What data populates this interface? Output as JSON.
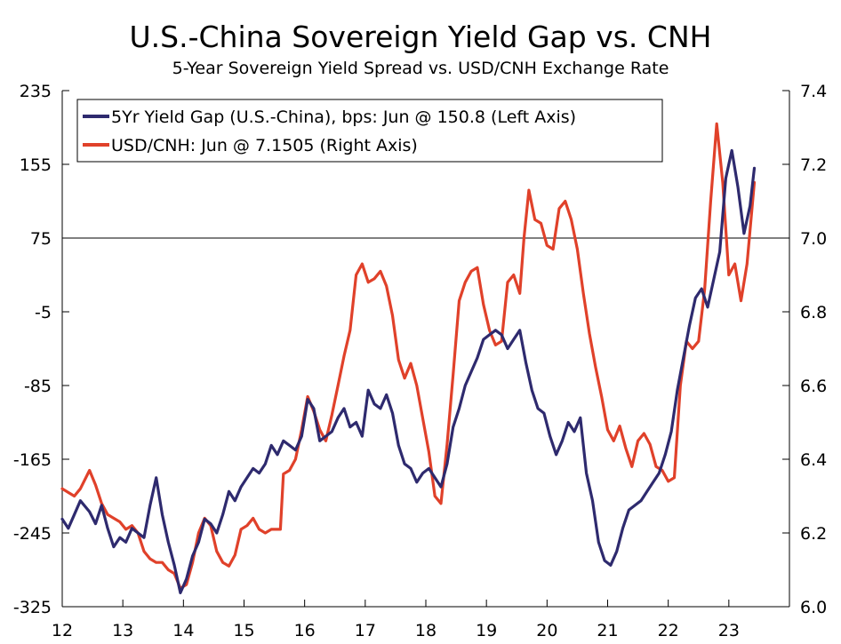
{
  "chart_data": {
    "type": "line",
    "title": "U.S.-China Sovereign Yield Gap vs. CNH",
    "subtitle": "5-Year Sovereign Yield Spread vs. USD/CNH Exchange Rate",
    "x_range": [
      2012.0,
      2024.0
    ],
    "x_ticks": [
      {
        "value": 2012,
        "label": "12"
      },
      {
        "value": 2013,
        "label": "13"
      },
      {
        "value": 2014,
        "label": "14"
      },
      {
        "value": 2015,
        "label": "15"
      },
      {
        "value": 2016,
        "label": "16"
      },
      {
        "value": 2017,
        "label": "17"
      },
      {
        "value": 2018,
        "label": "18"
      },
      {
        "value": 2019,
        "label": "19"
      },
      {
        "value": 2020,
        "label": "20"
      },
      {
        "value": 2021,
        "label": "21"
      },
      {
        "value": 2022,
        "label": "22"
      },
      {
        "value": 2023,
        "label": "23"
      }
    ],
    "left_axis": {
      "range": [
        -325,
        235
      ],
      "ticks": [
        235,
        155,
        75,
        -5,
        -85,
        -165,
        -245,
        -325
      ],
      "tick_labels": [
        "235",
        "155",
        "75",
        "-5",
        "-85",
        "-165",
        "-245",
        "-325"
      ]
    },
    "right_axis": {
      "range": [
        6.0,
        7.4
      ],
      "ticks": [
        7.4,
        7.2,
        7.0,
        6.8,
        6.6,
        6.4,
        6.2,
        6.0
      ],
      "tick_labels": [
        "7.4",
        "7.2",
        "7.0",
        "6.8",
        "6.6",
        "6.4",
        "6.2",
        "6.0"
      ]
    },
    "reference_line": {
      "axis": "left",
      "value": 75
    },
    "legend": [
      {
        "label": "5Yr Yield Gap (U.S.-China), bps: Jun @ 150.8 (Left Axis)",
        "color": "#2e2a6e"
      },
      {
        "label": "USD/CNH: Jun @ 7.1505 (Right Axis)",
        "color": "#e0412a"
      }
    ],
    "series": [
      {
        "name": "5Yr Yield Gap (U.S.-China), bps",
        "axis": "left",
        "color": "#2e2a6e",
        "x": [
          2012.0,
          2012.1,
          2012.2,
          2012.3,
          2012.45,
          2012.55,
          2012.65,
          2012.75,
          2012.85,
          2012.95,
          2013.05,
          2013.15,
          2013.25,
          2013.35,
          2013.45,
          2013.55,
          2013.65,
          2013.75,
          2013.85,
          2013.95,
          2014.05,
          2014.15,
          2014.25,
          2014.35,
          2014.45,
          2014.55,
          2014.65,
          2014.75,
          2014.85,
          2014.95,
          2015.05,
          2015.15,
          2015.25,
          2015.35,
          2015.45,
          2015.55,
          2015.65,
          2015.75,
          2015.85,
          2015.95,
          2016.05,
          2016.15,
          2016.25,
          2016.35,
          2016.45,
          2016.55,
          2016.65,
          2016.75,
          2016.85,
          2016.95,
          2017.05,
          2017.15,
          2017.25,
          2017.35,
          2017.45,
          2017.55,
          2017.65,
          2017.75,
          2017.85,
          2017.95,
          2018.05,
          2018.15,
          2018.25,
          2018.35,
          2018.45,
          2018.55,
          2018.65,
          2018.75,
          2018.85,
          2018.95,
          2019.05,
          2019.15,
          2019.25,
          2019.35,
          2019.45,
          2019.55,
          2019.65,
          2019.75,
          2019.85,
          2019.95,
          2020.05,
          2020.15,
          2020.25,
          2020.35,
          2020.45,
          2020.55,
          2020.65,
          2020.75,
          2020.85,
          2020.95,
          2021.05,
          2021.15,
          2021.25,
          2021.35,
          2021.45,
          2021.55,
          2021.65,
          2021.75,
          2021.85,
          2021.95,
          2022.05,
          2022.15,
          2022.25,
          2022.35,
          2022.45,
          2022.55,
          2022.65,
          2022.75,
          2022.85,
          2022.95,
          2023.05,
          2023.15,
          2023.25,
          2023.35,
          2023.42
        ],
        "values": [
          -230,
          -240,
          -225,
          -210,
          -222,
          -235,
          -215,
          -240,
          -260,
          -250,
          -255,
          -240,
          -245,
          -250,
          -215,
          -185,
          -225,
          -255,
          -280,
          -310,
          -295,
          -270,
          -255,
          -230,
          -235,
          -245,
          -225,
          -200,
          -210,
          -195,
          -185,
          -175,
          -180,
          -170,
          -150,
          -160,
          -145,
          -150,
          -155,
          -140,
          -100,
          -110,
          -145,
          -140,
          -135,
          -120,
          -110,
          -130,
          -125,
          -140,
          -90,
          -105,
          -110,
          -95,
          -115,
          -150,
          -170,
          -175,
          -190,
          -180,
          -175,
          -185,
          -195,
          -170,
          -130,
          -110,
          -85,
          -70,
          -55,
          -35,
          -30,
          -25,
          -30,
          -45,
          -35,
          -25,
          -60,
          -90,
          -110,
          -115,
          -140,
          -160,
          -145,
          -125,
          -135,
          -120,
          -180,
          -210,
          -255,
          -275,
          -280,
          -265,
          -240,
          -220,
          -215,
          -210,
          -200,
          -190,
          -180,
          -160,
          -135,
          -90,
          -55,
          -20,
          10,
          20,
          0,
          30,
          60,
          140,
          170,
          130,
          80,
          110,
          150.8
        ]
      },
      {
        "name": "USD/CNH",
        "axis": "right",
        "color": "#e0412a",
        "x": [
          2012.0,
          2012.1,
          2012.2,
          2012.3,
          2012.45,
          2012.55,
          2012.65,
          2012.75,
          2012.85,
          2012.95,
          2013.05,
          2013.15,
          2013.25,
          2013.35,
          2013.45,
          2013.55,
          2013.65,
          2013.75,
          2013.85,
          2013.95,
          2014.05,
          2014.15,
          2014.25,
          2014.35,
          2014.45,
          2014.55,
          2014.65,
          2014.75,
          2014.85,
          2014.95,
          2015.05,
          2015.15,
          2015.25,
          2015.35,
          2015.45,
          2015.55,
          2015.6,
          2015.65,
          2015.75,
          2015.85,
          2015.95,
          2016.05,
          2016.15,
          2016.25,
          2016.35,
          2016.45,
          2016.55,
          2016.65,
          2016.75,
          2016.85,
          2016.95,
          2017.05,
          2017.15,
          2017.25,
          2017.35,
          2017.45,
          2017.55,
          2017.65,
          2017.75,
          2017.85,
          2017.95,
          2018.05,
          2018.15,
          2018.25,
          2018.35,
          2018.45,
          2018.55,
          2018.65,
          2018.75,
          2018.85,
          2018.95,
          2019.05,
          2019.15,
          2019.25,
          2019.35,
          2019.45,
          2019.55,
          2019.62,
          2019.7,
          2019.8,
          2019.9,
          2020.0,
          2020.1,
          2020.2,
          2020.3,
          2020.4,
          2020.5,
          2020.6,
          2020.7,
          2020.8,
          2020.9,
          2021.0,
          2021.1,
          2021.2,
          2021.3,
          2021.4,
          2021.5,
          2021.6,
          2021.7,
          2021.8,
          2021.9,
          2022.0,
          2022.1,
          2022.2,
          2022.3,
          2022.4,
          2022.5,
          2022.6,
          2022.7,
          2022.8,
          2022.9,
          2023.0,
          2023.1,
          2023.2,
          2023.3,
          2023.42
        ],
        "values": [
          6.32,
          6.31,
          6.3,
          6.32,
          6.37,
          6.33,
          6.28,
          6.25,
          6.24,
          6.23,
          6.21,
          6.22,
          6.2,
          6.15,
          6.13,
          6.12,
          6.12,
          6.1,
          6.09,
          6.05,
          6.06,
          6.12,
          6.2,
          6.24,
          6.22,
          6.15,
          6.12,
          6.11,
          6.14,
          6.21,
          6.22,
          6.24,
          6.21,
          6.2,
          6.21,
          6.21,
          6.21,
          6.36,
          6.37,
          6.4,
          6.48,
          6.57,
          6.53,
          6.48,
          6.45,
          6.52,
          6.6,
          6.68,
          6.75,
          6.9,
          6.93,
          6.88,
          6.89,
          6.91,
          6.87,
          6.79,
          6.67,
          6.62,
          6.66,
          6.6,
          6.51,
          6.42,
          6.3,
          6.28,
          6.44,
          6.63,
          6.83,
          6.88,
          6.91,
          6.92,
          6.82,
          6.75,
          6.71,
          6.72,
          6.88,
          6.9,
          6.85,
          7.0,
          7.13,
          7.05,
          7.04,
          6.98,
          6.97,
          7.08,
          7.1,
          7.05,
          6.97,
          6.85,
          6.74,
          6.65,
          6.57,
          6.48,
          6.45,
          6.49,
          6.43,
          6.38,
          6.45,
          6.47,
          6.44,
          6.38,
          6.37,
          6.34,
          6.35,
          6.6,
          6.72,
          6.7,
          6.72,
          6.86,
          7.1,
          7.31,
          7.15,
          6.9,
          6.93,
          6.83,
          6.93,
          7.1505
        ]
      }
    ]
  }
}
